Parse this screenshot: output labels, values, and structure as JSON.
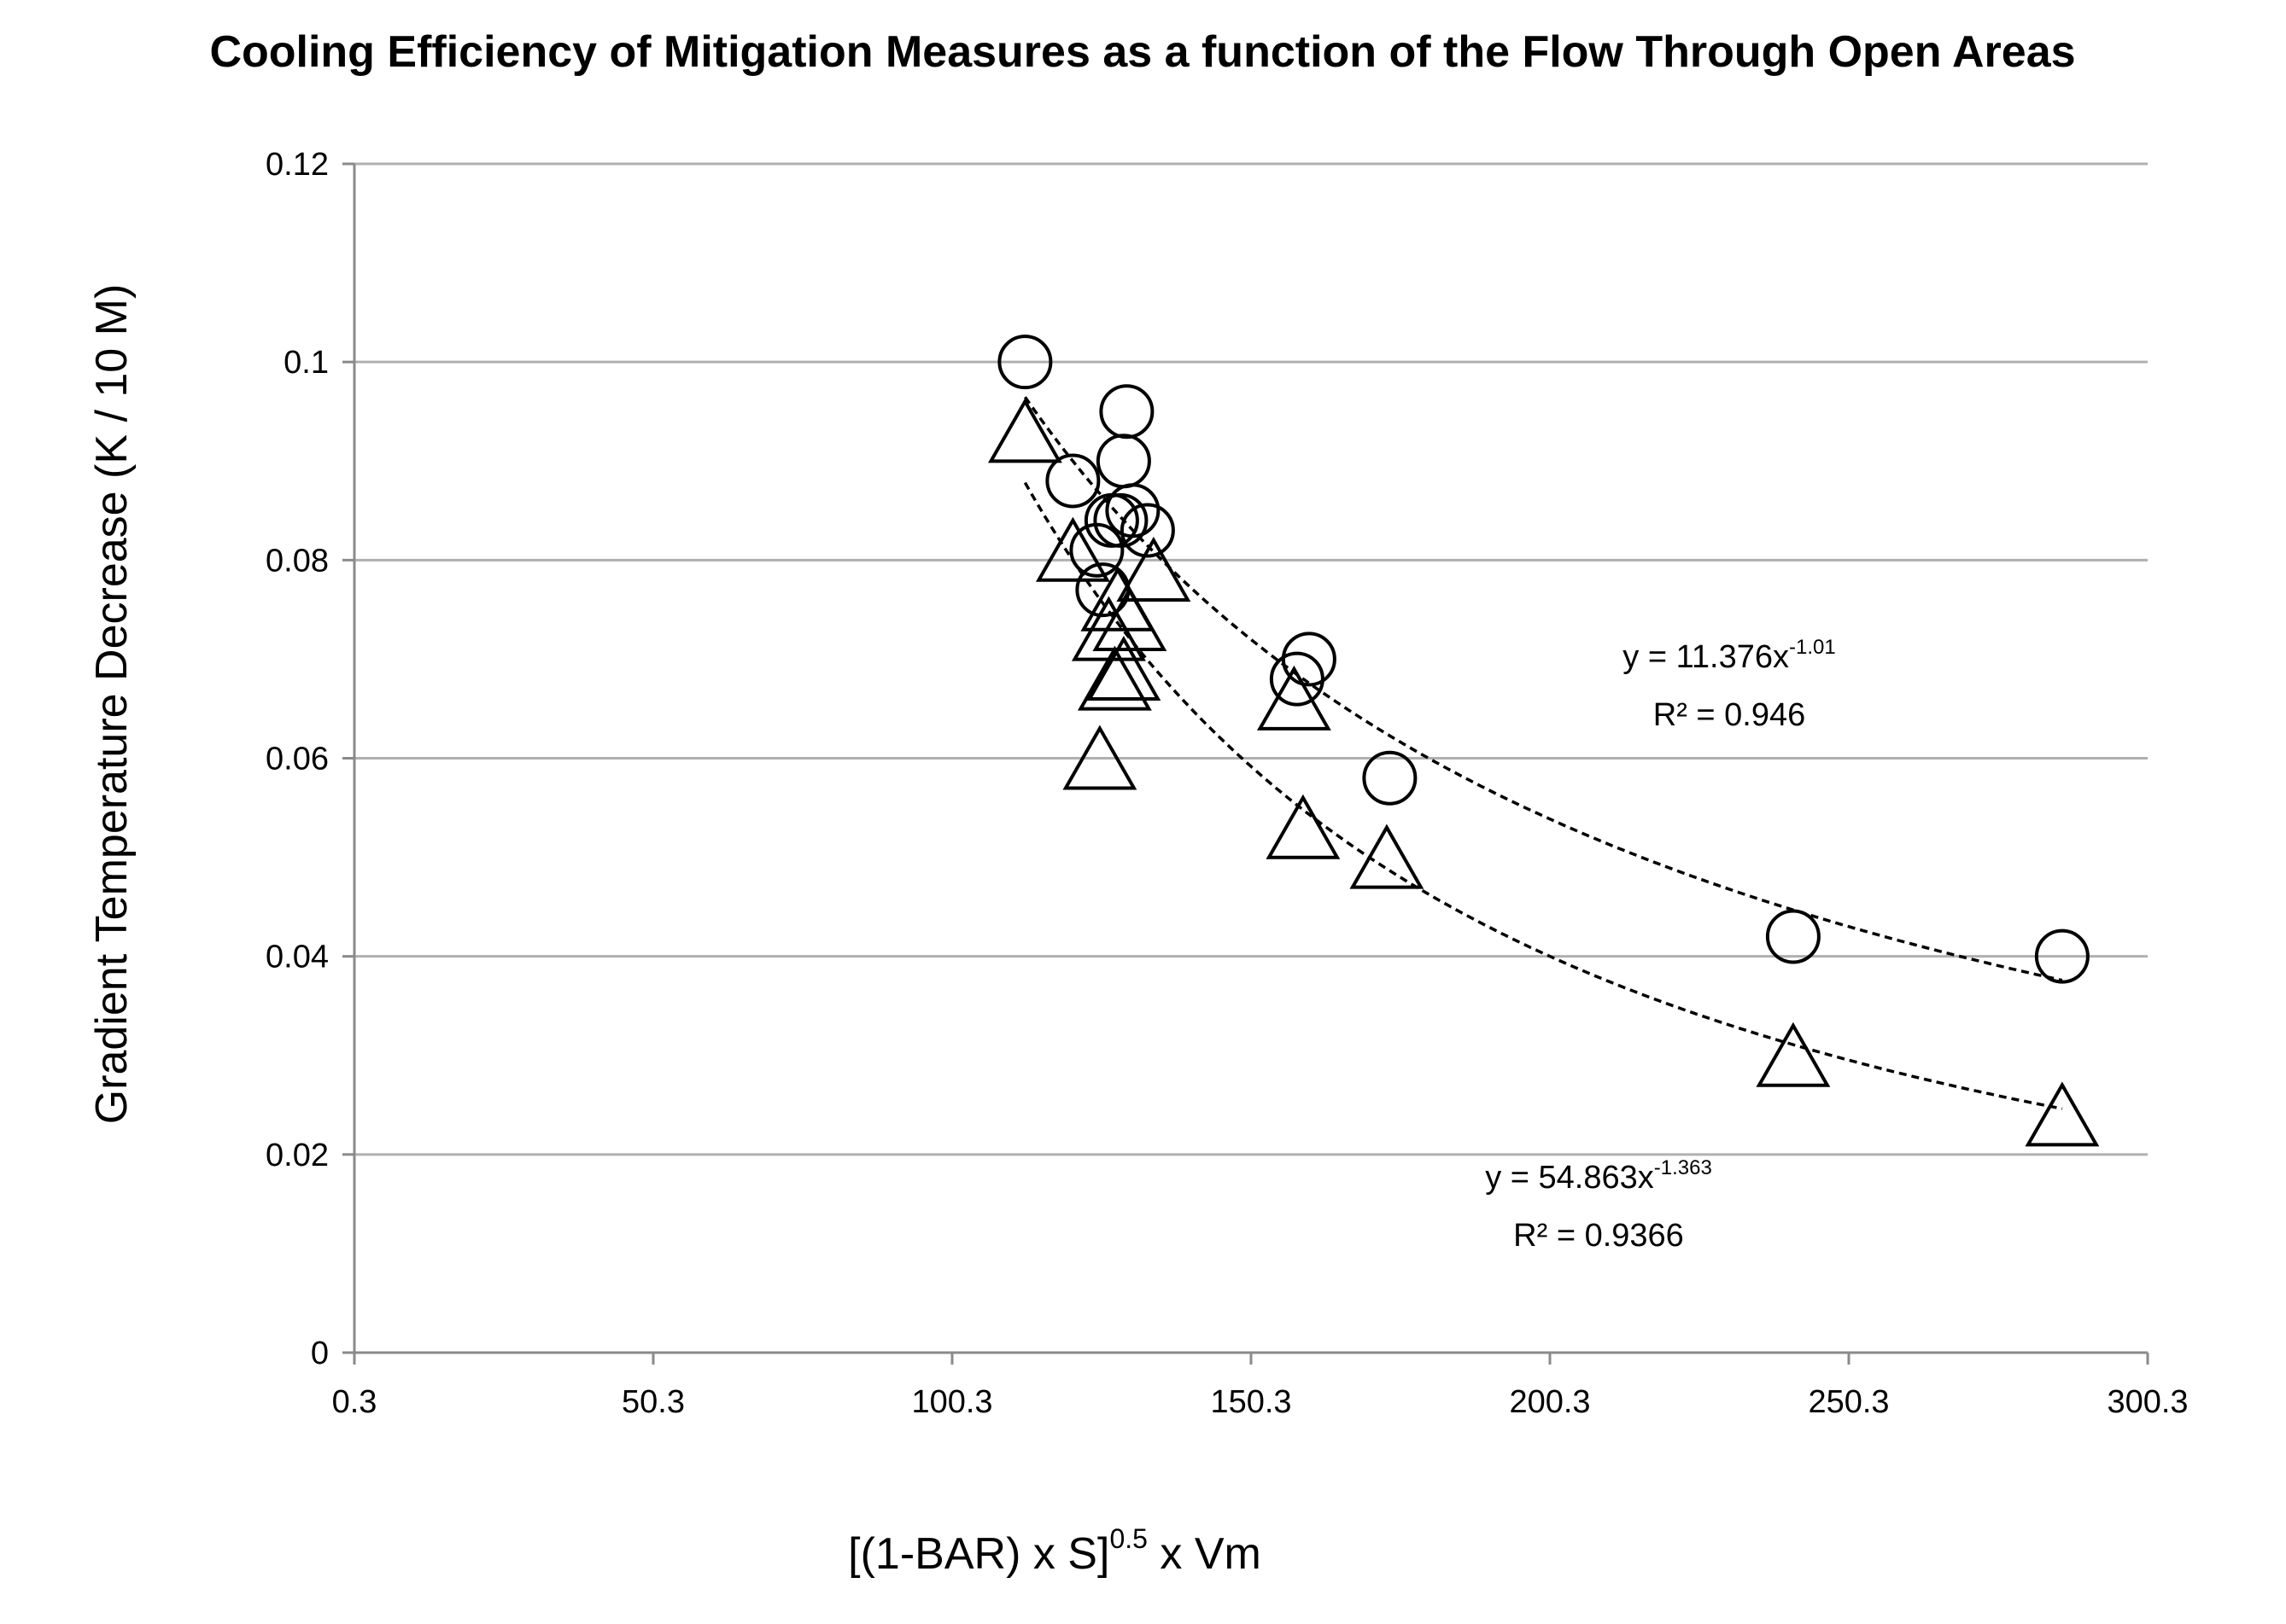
{
  "chart_data": {
    "type": "scatter",
    "title": "Cooling Efficiency of Mitigation Measures as a function of the Flow Through Open Areas",
    "xlabel": {
      "base": "[(1-BAR) x S]",
      "sup": "0.5",
      "suffix": " x Vm"
    },
    "ylabel": "Gradient Temperature Decrease  (K / 10 M)",
    "xlim": [
      0.3,
      300.3
    ],
    "ylim": [
      0,
      0.12
    ],
    "x_ticks": [
      0.3,
      50.3,
      100.3,
      150.3,
      200.3,
      250.3,
      300.3
    ],
    "x_tick_labels": [
      "0.3",
      "50.3",
      "100.3",
      "150.3",
      "200.3",
      "250.3",
      "300.3"
    ],
    "y_ticks": [
      0,
      0.02,
      0.04,
      0.06,
      0.08,
      0.1,
      0.12
    ],
    "y_tick_labels": [
      "0",
      "0.02",
      "0.04",
      "0.06",
      "0.08",
      "0.1",
      "0.12"
    ],
    "grid": "horizontal",
    "series": [
      {
        "name": "circles",
        "marker": "circle",
        "points": [
          {
            "x": 112.5,
            "y": 0.1
          },
          {
            "x": 120.5,
            "y": 0.088
          },
          {
            "x": 124.5,
            "y": 0.081
          },
          {
            "x": 125.5,
            "y": 0.077
          },
          {
            "x": 127.0,
            "y": 0.084
          },
          {
            "x": 128.5,
            "y": 0.084
          },
          {
            "x": 129.0,
            "y": 0.09
          },
          {
            "x": 129.5,
            "y": 0.095
          },
          {
            "x": 130.5,
            "y": 0.085
          },
          {
            "x": 133.0,
            "y": 0.083
          },
          {
            "x": 158.0,
            "y": 0.068
          },
          {
            "x": 160.0,
            "y": 0.07
          },
          {
            "x": 173.5,
            "y": 0.058
          },
          {
            "x": 241.0,
            "y": 0.042
          },
          {
            "x": 286.0,
            "y": 0.04
          }
        ],
        "trendline": {
          "type": "power",
          "coef": 11.376,
          "exp": -1.01,
          "x_range": [
            112.5,
            286.0
          ],
          "equation": {
            "prefix": "y = 11.376x",
            "sup": "-1.01"
          },
          "r2": "R² = 0.946"
        }
      },
      {
        "name": "triangles",
        "marker": "triangle",
        "points": [
          {
            "x": 112.5,
            "y": 0.093
          },
          {
            "x": 120.5,
            "y": 0.081
          },
          {
            "x": 125.0,
            "y": 0.06
          },
          {
            "x": 126.5,
            "y": 0.073
          },
          {
            "x": 127.5,
            "y": 0.068
          },
          {
            "x": 128.0,
            "y": 0.076
          },
          {
            "x": 129.0,
            "y": 0.069
          },
          {
            "x": 130.0,
            "y": 0.074
          },
          {
            "x": 134.0,
            "y": 0.079
          },
          {
            "x": 157.5,
            "y": 0.066
          },
          {
            "x": 159.0,
            "y": 0.053
          },
          {
            "x": 173.0,
            "y": 0.05
          },
          {
            "x": 241.0,
            "y": 0.03
          },
          {
            "x": 286.0,
            "y": 0.024
          }
        ],
        "trendline": {
          "type": "power",
          "coef": 54.863,
          "exp": -1.363,
          "x_range": [
            112.5,
            286.0
          ],
          "equation": {
            "prefix": "y = 54.863x",
            "sup": "-1.363"
          },
          "r2": "R² = 0.9366"
        }
      }
    ]
  }
}
